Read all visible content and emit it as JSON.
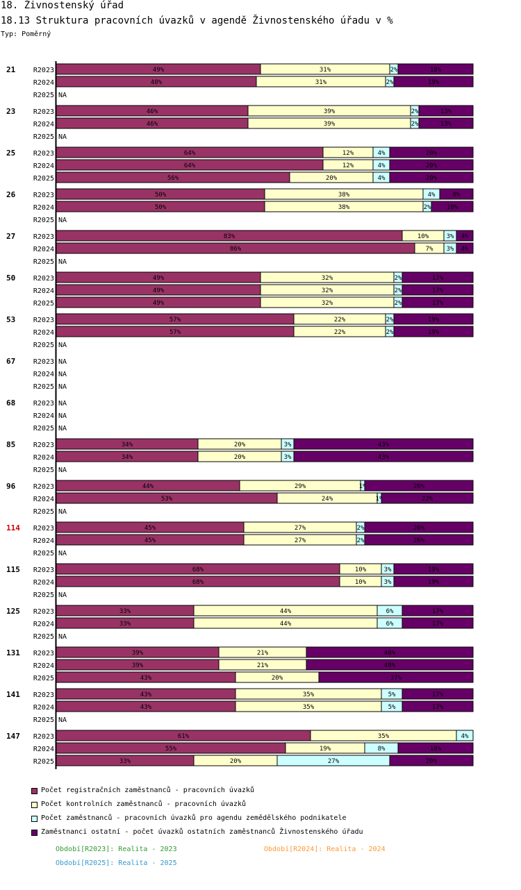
{
  "heading": "18. Živnostenský úřad",
  "subheading": "18.13 Struktura pracovních úvazků v agendě Živnostenského úřadu v %",
  "type_label": "Typ: Poměrný",
  "chart_data": {
    "type": "bar",
    "orientation": "horizontal",
    "stacked": "percent",
    "title": "18.13 Struktura pracovních úvazků v agendě Živnostenského úřadu v %",
    "series": [
      {
        "name": "Počet registračních zaměstnanců - pracovních úvazků",
        "color": "#993366"
      },
      {
        "name": "Počet kontrolních zaměstnanců - pracovních úvazků",
        "color": "#ffffcc"
      },
      {
        "name": "Počet zaměstnanců - pracovních úvazků pro agendu zemědělského podnikatele",
        "color": "#ccffff"
      },
      {
        "name": "Zaměstnanci ostatní - počet úvazků ostatních zaměstnanců Živnostenského úřadu",
        "color": "#660066"
      }
    ],
    "na_label": "NA",
    "groups": [
      {
        "id": "21",
        "rows": [
          {
            "period": "R2023",
            "values": [
              49,
              31,
              2,
              18
            ],
            "labels": [
              "49%",
              "31%",
              "2%",
              "18%"
            ]
          },
          {
            "period": "R2024",
            "values": [
              48,
              31,
              2,
              19
            ],
            "labels": [
              "48%",
              "31%",
              "2%",
              "19%"
            ]
          },
          {
            "period": "R2025",
            "values": null
          }
        ]
      },
      {
        "id": "23",
        "rows": [
          {
            "period": "R2023",
            "values": [
              46,
              39,
              2,
              13
            ],
            "labels": [
              "46%",
              "39%",
              "2%",
              "13%"
            ]
          },
          {
            "period": "R2024",
            "values": [
              46,
              39,
              2,
              13
            ],
            "labels": [
              "46%",
              "39%",
              "2%",
              "13%"
            ]
          },
          {
            "period": "R2025",
            "values": null
          }
        ]
      },
      {
        "id": "25",
        "rows": [
          {
            "period": "R2023",
            "values": [
              64,
              12,
              4,
              20
            ],
            "labels": [
              "64%",
              "12%",
              "4%",
              "20%"
            ]
          },
          {
            "period": "R2024",
            "values": [
              64,
              12,
              4,
              20
            ],
            "labels": [
              "64%",
              "12%",
              "4%",
              "20%"
            ]
          },
          {
            "period": "R2025",
            "values": [
              56,
              20,
              4,
              20
            ],
            "labels": [
              "56%",
              "20%",
              "4%",
              "20%"
            ]
          }
        ]
      },
      {
        "id": "26",
        "rows": [
          {
            "period": "R2023",
            "values": [
              50,
              38,
              4,
              8
            ],
            "labels": [
              "50%",
              "38%",
              "4%",
              "8%"
            ]
          },
          {
            "period": "R2024",
            "values": [
              50,
              38,
              2,
              10
            ],
            "labels": [
              "50%",
              "38%",
              "2%",
              "10%"
            ]
          },
          {
            "period": "R2025",
            "values": null
          }
        ]
      },
      {
        "id": "27",
        "rows": [
          {
            "period": "R2023",
            "values": [
              83,
              10,
              3,
              4
            ],
            "labels": [
              "83%",
              "10%",
              "3%",
              "4%"
            ]
          },
          {
            "period": "R2024",
            "values": [
              86,
              7,
              3,
              4
            ],
            "labels": [
              "86%",
              "7%",
              "3%",
              "4%"
            ]
          },
          {
            "period": "R2025",
            "values": null
          }
        ]
      },
      {
        "id": "50",
        "rows": [
          {
            "period": "R2023",
            "values": [
              49,
              32,
              2,
              17
            ],
            "labels": [
              "49%",
              "32%",
              "2%",
              "17%"
            ]
          },
          {
            "period": "R2024",
            "values": [
              49,
              32,
              2,
              17
            ],
            "labels": [
              "49%",
              "32%",
              "2%",
              "17%"
            ]
          },
          {
            "period": "R2025",
            "values": [
              49,
              32,
              2,
              17
            ],
            "labels": [
              "49%",
              "32%",
              "2%",
              "17%"
            ]
          }
        ]
      },
      {
        "id": "53",
        "rows": [
          {
            "period": "R2023",
            "values": [
              57,
              22,
              2,
              19
            ],
            "labels": [
              "57%",
              "22%",
              "2%",
              "19%"
            ]
          },
          {
            "period": "R2024",
            "values": [
              57,
              22,
              2,
              19
            ],
            "labels": [
              "57%",
              "22%",
              "2%",
              "19%"
            ]
          },
          {
            "period": "R2025",
            "values": null
          }
        ]
      },
      {
        "id": "67",
        "rows": [
          {
            "period": "R2023",
            "values": null
          },
          {
            "period": "R2024",
            "values": null
          },
          {
            "period": "R2025",
            "values": null
          }
        ]
      },
      {
        "id": "68",
        "rows": [
          {
            "period": "R2023",
            "values": null
          },
          {
            "period": "R2024",
            "values": null
          },
          {
            "period": "R2025",
            "values": null
          }
        ]
      },
      {
        "id": "85",
        "rows": [
          {
            "period": "R2023",
            "values": [
              34,
              20,
              3,
              43
            ],
            "labels": [
              "34%",
              "20%",
              "3%",
              "43%"
            ]
          },
          {
            "period": "R2024",
            "values": [
              34,
              20,
              3,
              43
            ],
            "labels": [
              "34%",
              "20%",
              "3%",
              "43%"
            ]
          },
          {
            "period": "R2025",
            "values": null
          }
        ]
      },
      {
        "id": "96",
        "rows": [
          {
            "period": "R2023",
            "values": [
              44,
              29,
              1,
              26
            ],
            "labels": [
              "44%",
              "29%",
              "1%",
              "26%"
            ]
          },
          {
            "period": "R2024",
            "values": [
              53,
              24,
              1,
              22
            ],
            "labels": [
              "53%",
              "24%",
              "1%",
              "22%"
            ]
          },
          {
            "period": "R2025",
            "values": null
          }
        ]
      },
      {
        "id": "114",
        "highlight": true,
        "rows": [
          {
            "period": "R2023",
            "values": [
              45,
              27,
              2,
              26
            ],
            "labels": [
              "45%",
              "27%",
              "2%",
              "26%"
            ]
          },
          {
            "period": "R2024",
            "values": [
              45,
              27,
              2,
              26
            ],
            "labels": [
              "45%",
              "27%",
              "2%",
              "26%"
            ]
          },
          {
            "period": "R2025",
            "values": null
          }
        ]
      },
      {
        "id": "115",
        "rows": [
          {
            "period": "R2023",
            "values": [
              68,
              10,
              3,
              19
            ],
            "labels": [
              "68%",
              "10%",
              "3%",
              "19%"
            ]
          },
          {
            "period": "R2024",
            "values": [
              68,
              10,
              3,
              19
            ],
            "labels": [
              "68%",
              "10%",
              "3%",
              "19%"
            ]
          },
          {
            "period": "R2025",
            "values": null
          }
        ]
      },
      {
        "id": "125",
        "rows": [
          {
            "period": "R2023",
            "values": [
              33,
              44,
              6,
              17
            ],
            "labels": [
              "33%",
              "44%",
              "6%",
              "17%"
            ]
          },
          {
            "period": "R2024",
            "values": [
              33,
              44,
              6,
              17
            ],
            "labels": [
              "33%",
              "44%",
              "6%",
              "17%"
            ]
          },
          {
            "period": "R2025",
            "values": null
          }
        ]
      },
      {
        "id": "131",
        "rows": [
          {
            "period": "R2023",
            "values": [
              39,
              21,
              0,
              40
            ],
            "labels": [
              "39%",
              "21%",
              "",
              "40%"
            ]
          },
          {
            "period": "R2024",
            "values": [
              39,
              21,
              0,
              40
            ],
            "labels": [
              "39%",
              "21%",
              "",
              "40%"
            ]
          },
          {
            "period": "R2025",
            "values": [
              43,
              20,
              0,
              37
            ],
            "labels": [
              "43%",
              "20%",
              "",
              "37%"
            ]
          }
        ]
      },
      {
        "id": "141",
        "rows": [
          {
            "period": "R2023",
            "values": [
              43,
              35,
              5,
              17
            ],
            "labels": [
              "43%",
              "35%",
              "5%",
              "17%"
            ]
          },
          {
            "period": "R2024",
            "values": [
              43,
              35,
              5,
              17
            ],
            "labels": [
              "43%",
              "35%",
              "5%",
              "17%"
            ]
          },
          {
            "period": "R2025",
            "values": null
          }
        ]
      },
      {
        "id": "147",
        "rows": [
          {
            "period": "R2023",
            "values": [
              61,
              35,
              4,
              0
            ],
            "labels": [
              "61%",
              "35%",
              "4%",
              ""
            ]
          },
          {
            "period": "R2024",
            "values": [
              55,
              19,
              8,
              18
            ],
            "labels": [
              "55%",
              "19%",
              "8%",
              "18%"
            ]
          },
          {
            "period": "R2025",
            "values": [
              33,
              20,
              27,
              20
            ],
            "labels": [
              "33%",
              "20%",
              "27%",
              "20%"
            ]
          }
        ]
      }
    ]
  },
  "periods": [
    {
      "code": "R2023",
      "label": "Období[R2023]: Realita - 2023",
      "color": "#339933"
    },
    {
      "code": "R2024",
      "label": "Období[R2024]: Realita - 2024",
      "color": "#ff9933"
    },
    {
      "code": "R2025",
      "label": "Období[R2025]: Realita - 2025",
      "color": "#3399cc"
    }
  ]
}
